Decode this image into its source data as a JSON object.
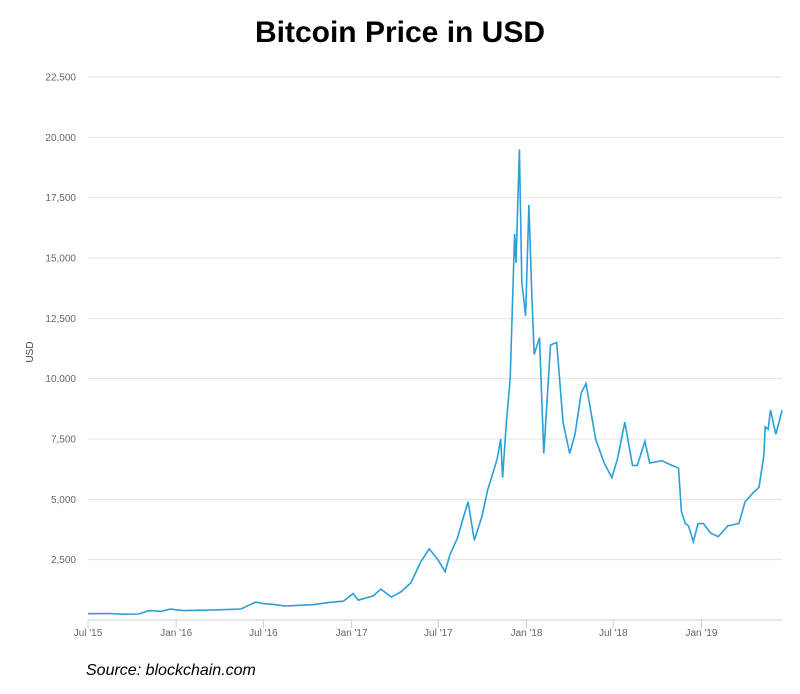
{
  "chart_data": {
    "type": "line",
    "title": "Bitcoin Price in USD",
    "xlabel": "",
    "ylabel": "USD",
    "source": "Source: blockchain.com",
    "xlim": [
      "2015-07-01",
      "2019-06-18"
    ],
    "ylim": [
      0,
      22500
    ],
    "yticks": [
      2500,
      5000,
      7500,
      10000,
      12500,
      15000,
      17500,
      20000,
      22500
    ],
    "ytick_labels": [
      "2,500",
      "5,000",
      "7,500",
      "10,000",
      "12,500",
      "15,000",
      "17,500",
      "20,000",
      "22,500"
    ],
    "xticks": [
      "2015-07-01",
      "2016-01-01",
      "2016-07-01",
      "2017-01-01",
      "2017-07-01",
      "2018-01-01",
      "2018-07-01",
      "2019-01-01"
    ],
    "xtick_labels": [
      "Jul '15",
      "Jan '16",
      "Jul '16",
      "Jan '17",
      "Jul '17",
      "Jan '18",
      "Jul '18",
      "Jan '19"
    ],
    "grid": true,
    "line_color": "#2a9fd8",
    "series": [
      {
        "name": "",
        "points": [
          [
            "2015-07-01",
            260
          ],
          [
            "2015-08-15",
            270
          ],
          [
            "2015-09-15",
            235
          ],
          [
            "2015-10-15",
            250
          ],
          [
            "2015-11-05",
            390
          ],
          [
            "2015-12-01",
            360
          ],
          [
            "2015-12-20",
            450
          ],
          [
            "2016-01-15",
            390
          ],
          [
            "2016-02-15",
            400
          ],
          [
            "2016-03-15",
            415
          ],
          [
            "2016-04-15",
            430
          ],
          [
            "2016-05-15",
            455
          ],
          [
            "2016-06-15",
            740
          ],
          [
            "2016-07-01",
            680
          ],
          [
            "2016-07-20",
            650
          ],
          [
            "2016-08-15",
            580
          ],
          [
            "2016-09-15",
            610
          ],
          [
            "2016-10-15",
            640
          ],
          [
            "2016-11-15",
            730
          ],
          [
            "2016-12-15",
            780
          ],
          [
            "2017-01-04",
            1100
          ],
          [
            "2017-01-15",
            820
          ],
          [
            "2017-02-15",
            1000
          ],
          [
            "2017-03-03",
            1280
          ],
          [
            "2017-03-25",
            950
          ],
          [
            "2017-04-15",
            1180
          ],
          [
            "2017-05-05",
            1550
          ],
          [
            "2017-05-25",
            2400
          ],
          [
            "2017-06-12",
            2950
          ],
          [
            "2017-06-30",
            2500
          ],
          [
            "2017-07-15",
            2000
          ],
          [
            "2017-07-25",
            2700
          ],
          [
            "2017-08-10",
            3400
          ],
          [
            "2017-08-20",
            4100
          ],
          [
            "2017-09-01",
            4900
          ],
          [
            "2017-09-14",
            3300
          ],
          [
            "2017-09-30",
            4300
          ],
          [
            "2017-10-12",
            5400
          ],
          [
            "2017-10-20",
            5900
          ],
          [
            "2017-11-01",
            6700
          ],
          [
            "2017-11-08",
            7500
          ],
          [
            "2017-11-12",
            5900
          ],
          [
            "2017-11-20",
            8200
          ],
          [
            "2017-11-28",
            10000
          ],
          [
            "2017-12-07",
            16000
          ],
          [
            "2017-12-10",
            14800
          ],
          [
            "2017-12-17",
            19500
          ],
          [
            "2017-12-22",
            14000
          ],
          [
            "2017-12-30",
            12600
          ],
          [
            "2018-01-06",
            17200
          ],
          [
            "2018-01-12",
            13500
          ],
          [
            "2018-01-17",
            11000
          ],
          [
            "2018-01-28",
            11700
          ],
          [
            "2018-02-06",
            6900
          ],
          [
            "2018-02-20",
            11400
          ],
          [
            "2018-03-05",
            11500
          ],
          [
            "2018-03-18",
            8200
          ],
          [
            "2018-04-01",
            6900
          ],
          [
            "2018-04-12",
            7700
          ],
          [
            "2018-04-25",
            9400
          ],
          [
            "2018-05-05",
            9800
          ],
          [
            "2018-05-25",
            7500
          ],
          [
            "2018-06-12",
            6500
          ],
          [
            "2018-06-28",
            5900
          ],
          [
            "2018-07-10",
            6700
          ],
          [
            "2018-07-25",
            8200
          ],
          [
            "2018-08-10",
            6400
          ],
          [
            "2018-08-20",
            6400
          ],
          [
            "2018-09-05",
            7400
          ],
          [
            "2018-09-15",
            6500
          ],
          [
            "2018-10-10",
            6600
          ],
          [
            "2018-11-01",
            6400
          ],
          [
            "2018-11-14",
            6300
          ],
          [
            "2018-11-20",
            4500
          ],
          [
            "2018-11-28",
            4000
          ],
          [
            "2018-12-05",
            3900
          ],
          [
            "2018-12-15",
            3250
          ],
          [
            "2018-12-25",
            4000
          ],
          [
            "2019-01-05",
            4000
          ],
          [
            "2019-01-20",
            3600
          ],
          [
            "2019-02-05",
            3450
          ],
          [
            "2019-02-25",
            3900
          ],
          [
            "2019-03-20",
            4000
          ],
          [
            "2019-04-02",
            4900
          ],
          [
            "2019-04-20",
            5300
          ],
          [
            "2019-05-01",
            5500
          ],
          [
            "2019-05-11",
            6800
          ],
          [
            "2019-05-14",
            8000
          ],
          [
            "2019-05-20",
            7900
          ],
          [
            "2019-05-25",
            8700
          ],
          [
            "2019-06-05",
            7700
          ],
          [
            "2019-06-12",
            8200
          ],
          [
            "2019-06-18",
            8700
          ]
        ]
      }
    ]
  }
}
